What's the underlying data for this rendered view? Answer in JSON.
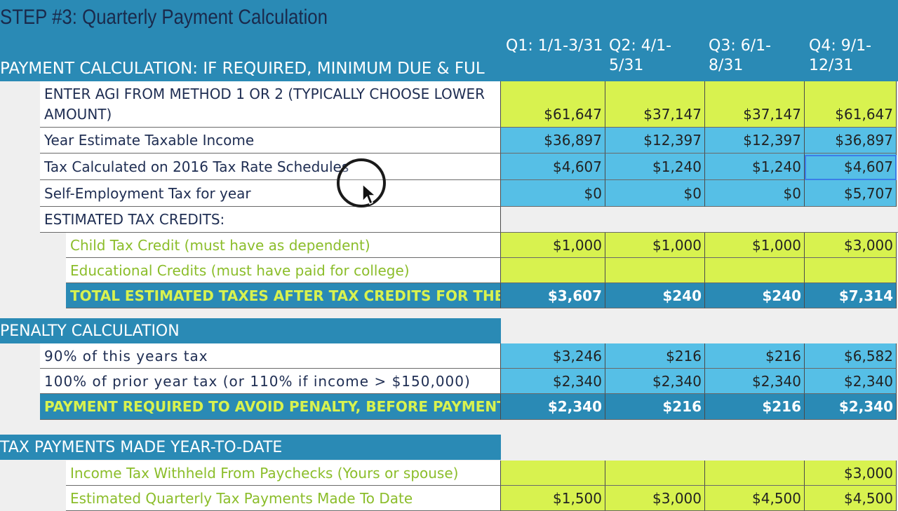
{
  "title": "STEP #3: Quarterly Payment Calculation",
  "header": {
    "label": "PAYMENT CALCULATION: IF REQUIRED, MINIMUM DUE & FUL",
    "quarters": [
      "Q1: 1/1-3/31",
      "Q2: 4/1-5/31",
      "Q3: 6/1-8/31",
      "Q4: 9/1-12/31"
    ]
  },
  "payment_rows": [
    {
      "label": "ENTER AGI FROM METHOD 1 OR 2 (TYPICALLY CHOOSE LOWER AMOUNT)",
      "values": [
        "$61,647",
        "$37,147",
        "$37,147",
        "$61,647"
      ]
    },
    {
      "label": "Year Estimate Taxable Income",
      "values": [
        "$36,897",
        "$12,397",
        "$12,397",
        "$36,897"
      ]
    },
    {
      "label": "Tax Calculated on 2016 Tax Rate Schedules",
      "values": [
        "$4,607",
        "$1,240",
        "$1,240",
        "$4,607"
      ]
    },
    {
      "label": "Self-Employment Tax for year",
      "values": [
        "$0",
        "$0",
        "$0",
        "$5,707"
      ]
    },
    {
      "label": "ESTIMATED TAX CREDITS:",
      "values": [
        "",
        "",
        "",
        ""
      ]
    }
  ],
  "credits": [
    {
      "label": "Child Tax Credit (must have as dependent)",
      "values": [
        "$1,000",
        "$1,000",
        "$1,000",
        "$3,000"
      ]
    },
    {
      "label": "Educational Credits (must have paid for college)",
      "values": [
        "",
        "",
        "",
        ""
      ]
    }
  ],
  "total_taxes": {
    "label": "TOTAL ESTIMATED TAXES AFTER TAX CREDITS FOR THE YEAR",
    "values": [
      "$3,607",
      "$240",
      "$240",
      "$7,314"
    ]
  },
  "penalty": {
    "heading": "PENALTY CALCULATION",
    "rows": [
      {
        "label": "90% of this years tax",
        "values": [
          "$3,246",
          "$216",
          "$216",
          "$6,582"
        ]
      },
      {
        "label": "100% of prior year tax (or 110% if income > $150,000)",
        "values": [
          "$2,340",
          "$2,340",
          "$2,340",
          "$2,340"
        ]
      }
    ],
    "total": {
      "label": "PAYMENT REQUIRED TO AVOID PENALTY, BEFORE PAYMENTS",
      "values": [
        "$2,340",
        "$216",
        "$216",
        "$2,340"
      ]
    }
  },
  "payments": {
    "heading": "TAX PAYMENTS MADE YEAR-TO-DATE",
    "rows": [
      {
        "label": "Income Tax Withheld From Paychecks (Yours or spouse)",
        "values": [
          "",
          "",
          "",
          "$3,000"
        ]
      },
      {
        "label": "Estimated Quarterly Tax Payments Made To Date",
        "values": [
          "$1,500",
          "$3,000",
          "$4,500",
          "$4,500"
        ]
      }
    ]
  },
  "colors": {
    "header_blue": "#2a8ab5",
    "cell_blue": "#56bfe6",
    "cell_lime": "#d8f24f",
    "label_navy": "#1e2d52",
    "label_green": "#8bbd2a"
  }
}
